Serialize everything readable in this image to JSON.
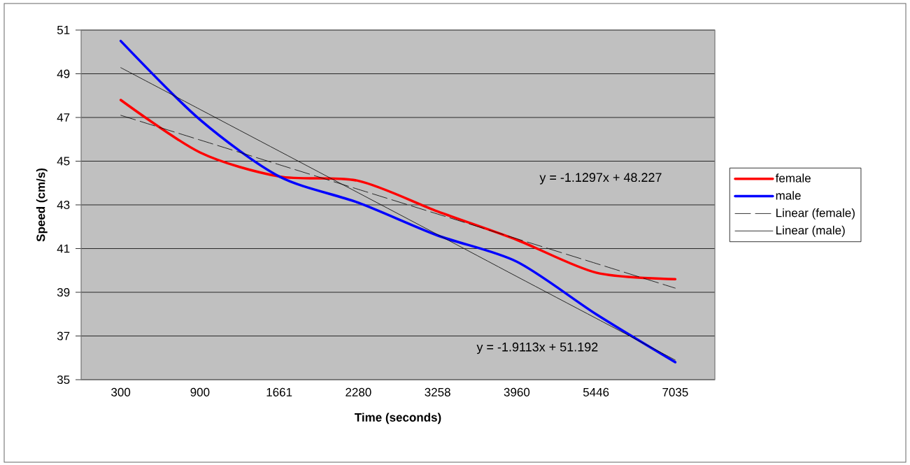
{
  "chart_data": {
    "type": "line",
    "xlabel": "Time (seconds)",
    "ylabel": "Speed (cm/s)",
    "categories": [
      "300",
      "900",
      "1661",
      "2280",
      "3258",
      "3960",
      "5446",
      "7035"
    ],
    "series": [
      {
        "name": "female",
        "color": "#ff0000",
        "values": [
          47.8,
          45.4,
          44.3,
          44.1,
          42.7,
          41.4,
          39.9,
          39.6
        ]
      },
      {
        "name": "male",
        "color": "#0000ff",
        "values": [
          50.5,
          46.9,
          44.3,
          43.1,
          41.6,
          40.4,
          38.0,
          35.8
        ]
      },
      {
        "name": "Linear (female)",
        "color": "#000000",
        "line_style": "dashed",
        "values": [
          47.1,
          45.97,
          44.84,
          43.71,
          42.58,
          41.45,
          40.32,
          39.19
        ]
      },
      {
        "name": "Linear (male)",
        "color": "#000000",
        "line_style": "solid",
        "values": [
          49.28,
          47.37,
          45.46,
          43.55,
          41.64,
          39.72,
          37.81,
          35.9
        ]
      }
    ],
    "ylim": [
      35,
      51
    ],
    "yticks": [
      35,
      37,
      39,
      41,
      43,
      45,
      47,
      49,
      51
    ],
    "grid": "y",
    "legend": "right",
    "marker": "none",
    "annotations": [
      "y = -1.1297x + 48.227",
      "y = -1.9113x + 51.192"
    ]
  }
}
